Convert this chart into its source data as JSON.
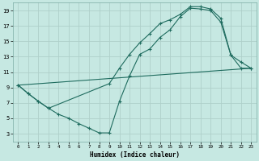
{
  "xlabel": "Humidex (Indice chaleur)",
  "bg_color": "#c6e8e2",
  "grid_color": "#afd0ca",
  "line_color": "#1e6b5e",
  "xlim": [
    -0.5,
    23.5
  ],
  "ylim": [
    2,
    20
  ],
  "xticks": [
    0,
    1,
    2,
    3,
    4,
    5,
    6,
    7,
    8,
    9,
    10,
    11,
    12,
    13,
    14,
    15,
    16,
    17,
    18,
    19,
    20,
    21,
    22,
    23
  ],
  "yticks": [
    3,
    5,
    7,
    9,
    11,
    13,
    15,
    17,
    19
  ],
  "line1_x": [
    0,
    1,
    2,
    3,
    4,
    5,
    6,
    7,
    8,
    9,
    10,
    11,
    12,
    13,
    14,
    15,
    16,
    17,
    18,
    19,
    20,
    21,
    22,
    23
  ],
  "line1_y": [
    9.3,
    8.2,
    7.2,
    6.3,
    5.5,
    5.0,
    4.3,
    3.7,
    3.1,
    3.1,
    7.2,
    10.5,
    13.3,
    14.0,
    15.5,
    16.5,
    18.2,
    19.3,
    19.2,
    19.0,
    17.5,
    13.2,
    11.5,
    11.5
  ],
  "line2_x": [
    0,
    1,
    2,
    3,
    9,
    10,
    11,
    12,
    13,
    14,
    15,
    16,
    17,
    18,
    19,
    20,
    21,
    22,
    23
  ],
  "line2_y": [
    9.3,
    8.2,
    7.2,
    6.3,
    9.5,
    11.5,
    13.3,
    14.8,
    16.0,
    17.3,
    17.8,
    18.5,
    19.5,
    19.5,
    19.2,
    18.0,
    13.2,
    12.3,
    11.5
  ],
  "line3_x": [
    0,
    23
  ],
  "line3_y": [
    9.3,
    11.5
  ]
}
